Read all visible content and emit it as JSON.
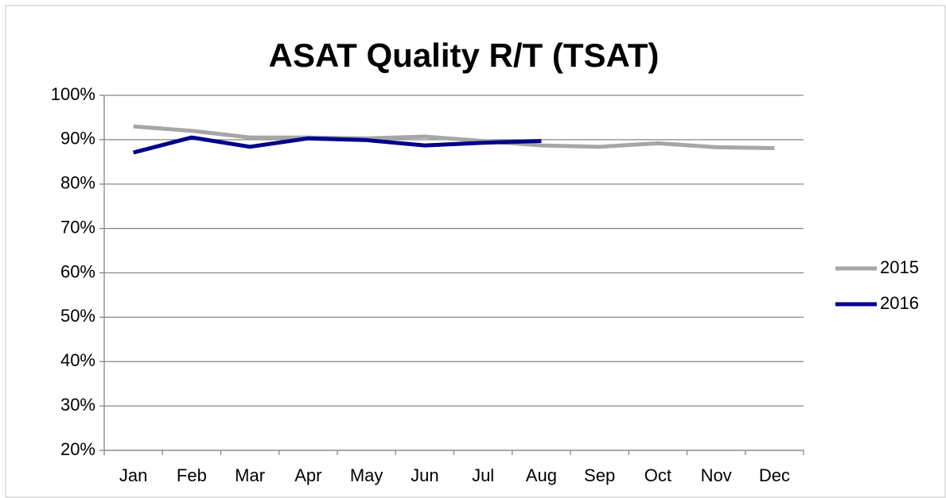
{
  "chart_data": {
    "type": "line",
    "title": "ASAT Quality R/T (TSAT)",
    "categories": [
      "Jan",
      "Feb",
      "Mar",
      "Apr",
      "May",
      "Jun",
      "Jul",
      "Aug",
      "Sep",
      "Oct",
      "Nov",
      "Dec"
    ],
    "series": [
      {
        "name": "2015",
        "color": "#a6a6a6",
        "values": [
          93,
          92,
          90.5,
          90.5,
          90.3,
          90.7,
          89.7,
          88.7,
          88.4,
          89.2,
          88.3,
          88.1
        ]
      },
      {
        "name": "2016",
        "color": "#00008b",
        "values": [
          87.1,
          90.5,
          88.4,
          90.3,
          89.9,
          88.7,
          89.3,
          89.7,
          null,
          null,
          null,
          null
        ]
      }
    ],
    "ylim": [
      20,
      100
    ],
    "yticks": [
      {
        "value": 20,
        "label": "20%"
      },
      {
        "value": 30,
        "label": "30%"
      },
      {
        "value": 40,
        "label": "40%"
      },
      {
        "value": 50,
        "label": "50%"
      },
      {
        "value": 60,
        "label": "60%"
      },
      {
        "value": 70,
        "label": "70%"
      },
      {
        "value": 80,
        "label": "80%"
      },
      {
        "value": 90,
        "label": "90%"
      },
      {
        "value": 100,
        "label": "100%"
      }
    ],
    "grid": true,
    "legend": "right"
  }
}
